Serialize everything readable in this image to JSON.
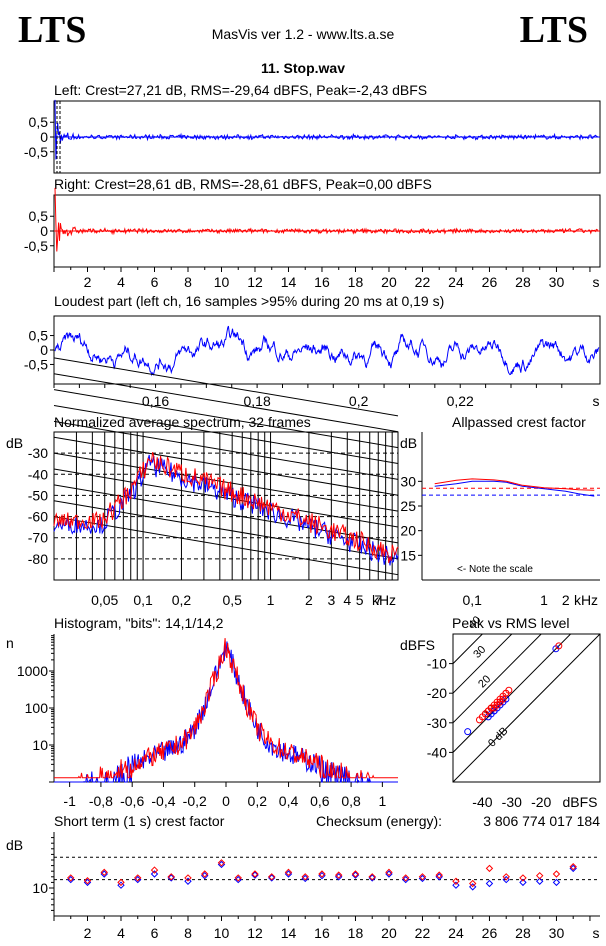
{
  "header": {
    "logo_left": "LTS",
    "logo_right": "LTS",
    "app_title": "MasVis ver 1.2 - www.lts.a.se",
    "file_name": "11. Stop.wav"
  },
  "colors": {
    "left": "#0000ff",
    "right": "#ff0000",
    "grid": "#000000"
  },
  "chart_data": [
    {
      "id": "left_waveform",
      "type": "line",
      "title": "Left: Crest=27,21 dB, RMS=-29,64 dBFS, Peak=-2,43 dBFS",
      "yticks": [
        "0,5",
        "0",
        "-0,5"
      ],
      "ylim": [
        -1,
        1
      ],
      "xlim": [
        0,
        32
      ],
      "series": [
        {
          "name": "Left",
          "color": "#0000ff"
        }
      ]
    },
    {
      "id": "right_waveform",
      "type": "line",
      "title": "Right: Crest=28,61 dB, RMS=-28,61 dBFS, Peak=0,00 dBFS",
      "yticks": [
        "0,5",
        "0",
        "-0,5"
      ],
      "ylim": [
        -1,
        1
      ],
      "xlim": [
        0,
        32
      ],
      "xticks": [
        "2",
        "4",
        "6",
        "8",
        "10",
        "12",
        "14",
        "16",
        "18",
        "20",
        "22",
        "24",
        "26",
        "28",
        "30"
      ],
      "xunit": "s",
      "series": [
        {
          "name": "Right",
          "color": "#ff0000"
        }
      ]
    },
    {
      "id": "loudest_part",
      "type": "line",
      "title": "Loudest part (left  ch, 16 samples >95% during 20 ms at 0,19 s)",
      "yticks": [
        "0,5",
        "0",
        "-0,5"
      ],
      "ylim": [
        -1,
        1
      ],
      "xlim": [
        0.14,
        0.24
      ],
      "xticks": [
        "0,16",
        "0,18",
        "0,2",
        "0,22"
      ],
      "xunit": "s"
    },
    {
      "id": "avg_spectrum",
      "type": "line",
      "title": "Normalized average spectrum, 32 frames",
      "ylabel": "dB",
      "yticks": [
        "-30",
        "-40",
        "-50",
        "-60",
        "-70",
        "-80"
      ],
      "ylim": [
        -90,
        -20
      ],
      "xticks": [
        "0,05",
        "0,1",
        "0,2",
        "0,5",
        "1",
        "2",
        "3",
        "4",
        "5",
        "7"
      ],
      "xunit": "kHz",
      "xscale": "log",
      "xlim": [
        0.02,
        10
      ]
    },
    {
      "id": "allpassed_crest",
      "type": "line",
      "title": "Allpassed crest factor",
      "ylabel": "dB",
      "yticks": [
        "30",
        "25",
        "20",
        "15"
      ],
      "ylim": [
        10,
        40
      ],
      "xticks": [
        "0,1",
        "1",
        "2"
      ],
      "xunit": "kHz",
      "xscale": "log",
      "annotation": "<- Note the scale",
      "series": [
        {
          "name": "Left",
          "color": "#0000ff",
          "x": [
            0.03,
            0.06,
            0.1,
            0.2,
            0.3,
            0.5,
            1,
            2,
            3,
            5
          ],
          "y": [
            29,
            29.5,
            30,
            30,
            29.8,
            29,
            28.5,
            28,
            27.5,
            27
          ]
        },
        {
          "name": "Right",
          "color": "#ff0000",
          "x": [
            0.03,
            0.06,
            0.1,
            0.2,
            0.3,
            0.5,
            1,
            2,
            3,
            5
          ],
          "y": [
            29.5,
            30.2,
            30.5,
            30.3,
            30,
            29.2,
            28.7,
            28.5,
            28.3,
            28.2
          ]
        }
      ],
      "ref_lines": [
        {
          "color": "#0000ff",
          "y": 27.2
        },
        {
          "color": "#ff0000",
          "y": 28.6
        }
      ]
    },
    {
      "id": "histogram",
      "type": "line",
      "title": "Histogram, \"bits\": 14,1/14,2",
      "ylabel": "n",
      "yticks": [
        "1000",
        "100",
        "10"
      ],
      "yscale": "log",
      "ylim": [
        1,
        10000
      ],
      "xlim": [
        -1.1,
        1.1
      ],
      "xticks": [
        "-1",
        "-0,8",
        "-0,6",
        "-0,4",
        "-0,2",
        "0",
        "0,2",
        "0,4",
        "0,6",
        "0,8",
        "1"
      ]
    },
    {
      "id": "peak_vs_rms",
      "type": "scatter",
      "title": "Peak vs RMS level",
      "ylabel": "dBFS",
      "xlabel": "dBFS",
      "yticks": [
        "-10",
        "-20",
        "-30",
        "-40"
      ],
      "xticks": [
        "-40",
        "-30",
        "-20"
      ],
      "xlim": [
        -50,
        0
      ],
      "ylim": [
        -50,
        0
      ],
      "diag_labels": [
        "40",
        "30",
        "20",
        "10",
        "0 dB"
      ],
      "series": [
        {
          "name": "Left",
          "color": "#0000ff",
          "x": [
            -15,
            -32,
            -34,
            -36,
            -38,
            -35,
            -33,
            -37,
            -45,
            -36
          ],
          "y": [
            -5,
            -22,
            -24,
            -26,
            -28,
            -25,
            -23,
            -27,
            -33,
            -26
          ]
        },
        {
          "name": "Right",
          "color": "#ff0000",
          "x": [
            -14,
            -31,
            -32,
            -33,
            -34,
            -35,
            -36,
            -37,
            -38,
            -39,
            -33,
            -34,
            -35,
            -36,
            -32,
            -38,
            -37,
            -40,
            -41,
            -39
          ],
          "y": [
            -4,
            -19,
            -20,
            -21,
            -22,
            -23,
            -24,
            -25,
            -26,
            -27,
            -22,
            -23,
            -24,
            -25,
            -20,
            -26,
            -25,
            -28,
            -29,
            -27
          ]
        }
      ]
    },
    {
      "id": "short_term_crest",
      "type": "scatter",
      "title": "Short term (1 s) crest factor",
      "checksum_label": "Checksum (energy):",
      "checksum_value": "3 806 774 017 184",
      "ylabel": "dB",
      "yticks": [
        "10"
      ],
      "ylim": [
        5,
        20
      ],
      "xlim": [
        0,
        32
      ],
      "xticks": [
        "2",
        "4",
        "6",
        "8",
        "10",
        "12",
        "14",
        "16",
        "18",
        "20",
        "22",
        "24",
        "26",
        "28",
        "30"
      ],
      "xunit": "s",
      "series": [
        {
          "name": "Left",
          "color": "#0000ff",
          "x": [
            1,
            2,
            3,
            4,
            5,
            6,
            7,
            8,
            9,
            10,
            11,
            12,
            13,
            14,
            15,
            16,
            17,
            18,
            19,
            20,
            21,
            22,
            23,
            24,
            25,
            26,
            27,
            28,
            29,
            30,
            31
          ],
          "y": [
            11.5,
            11,
            12.5,
            10.5,
            11.5,
            12.5,
            11.8,
            11.2,
            12.2,
            14.2,
            11.5,
            12.3,
            11.8,
            12.5,
            11.7,
            12.2,
            12,
            12.3,
            11.8,
            12.5,
            11.5,
            11.7,
            12,
            10.5,
            10.2,
            10.8,
            11.5,
            11,
            11.2,
            11,
            13.5
          ]
        },
        {
          "name": "Right",
          "color": "#ff0000",
          "x": [
            1,
            2,
            3,
            4,
            5,
            6,
            7,
            8,
            9,
            10,
            11,
            12,
            13,
            14,
            15,
            16,
            17,
            18,
            19,
            20,
            21,
            22,
            23,
            24,
            25,
            26,
            27,
            28,
            29,
            30,
            31
          ],
          "y": [
            11.8,
            11.3,
            12.8,
            11,
            11.8,
            13.2,
            12,
            11.8,
            12.5,
            14.5,
            11.8,
            12.5,
            12,
            12.8,
            12,
            12.5,
            12.3,
            12.5,
            12,
            12.8,
            11.8,
            12,
            12.3,
            11.2,
            10.8,
            13.5,
            12,
            11.8,
            12.2,
            12.5,
            13.8
          ]
        }
      ],
      "ref_lines": [
        15.5,
        11.5
      ]
    }
  ]
}
